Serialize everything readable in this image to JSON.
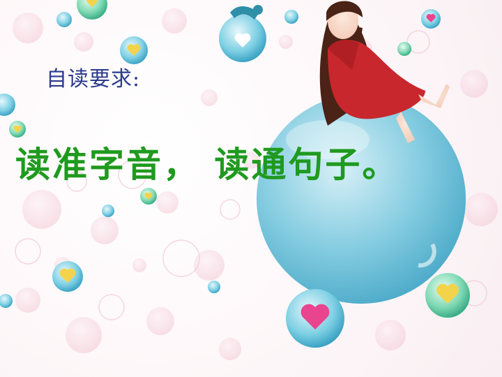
{
  "slide": {
    "heading": "自读要求:",
    "instruction": "读准字音， 读通句子。"
  },
  "colors": {
    "heading": "#2b3a8c",
    "instruction": "#1f9a1f",
    "big_bubble": "#6fc3dc",
    "dress": "#c8282d"
  },
  "decorations": [
    "bubble-icon",
    "heart-icon",
    "girl-illustration"
  ]
}
